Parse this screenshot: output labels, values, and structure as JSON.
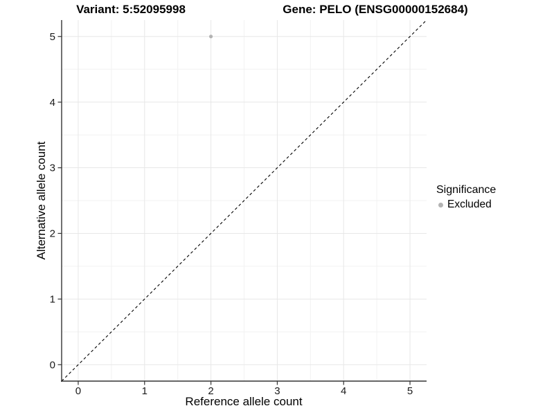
{
  "page": {
    "background": "#ffffff"
  },
  "chart_data": {
    "type": "scatter",
    "titles": {
      "variant": "Variant: 5:52095998",
      "gene": "Gene: PELO (ENSG00000152684)"
    },
    "xlabel": "Reference allele count",
    "ylabel": "Alternative allele count",
    "xlim": [
      -0.25,
      5.25
    ],
    "ylim": [
      -0.25,
      5.25
    ],
    "xticks": [
      0,
      1,
      2,
      3,
      4,
      5
    ],
    "yticks": [
      0,
      1,
      2,
      3,
      4,
      5
    ],
    "xminor": [
      0.5,
      1.5,
      2.5,
      3.5,
      4.5
    ],
    "yminor": [
      0.5,
      1.5,
      2.5,
      3.5,
      4.5
    ],
    "grid": "major+minor",
    "series": [
      {
        "name": "Excluded",
        "color": "#b3b3b3",
        "marker": "circle",
        "points": [
          {
            "x": 2,
            "y": 5
          }
        ]
      }
    ],
    "reference_line": {
      "kind": "identity y=x",
      "style": "dashed",
      "color": "#000000",
      "from": -0.25,
      "to": 5.25
    },
    "legend": {
      "title": "Significance",
      "position": "right",
      "items": [
        {
          "label": "Excluded",
          "color": "#b3b3b3",
          "marker": "circle"
        }
      ]
    },
    "colors": {
      "grid_major": "#e7e7e7",
      "grid_minor": "#f2f2f2",
      "axis_line": "#333333",
      "tick_mark": "#333333",
      "tick_text": "#1a1a1a",
      "title_text": "#000000",
      "point": "#b3b3b3"
    }
  }
}
